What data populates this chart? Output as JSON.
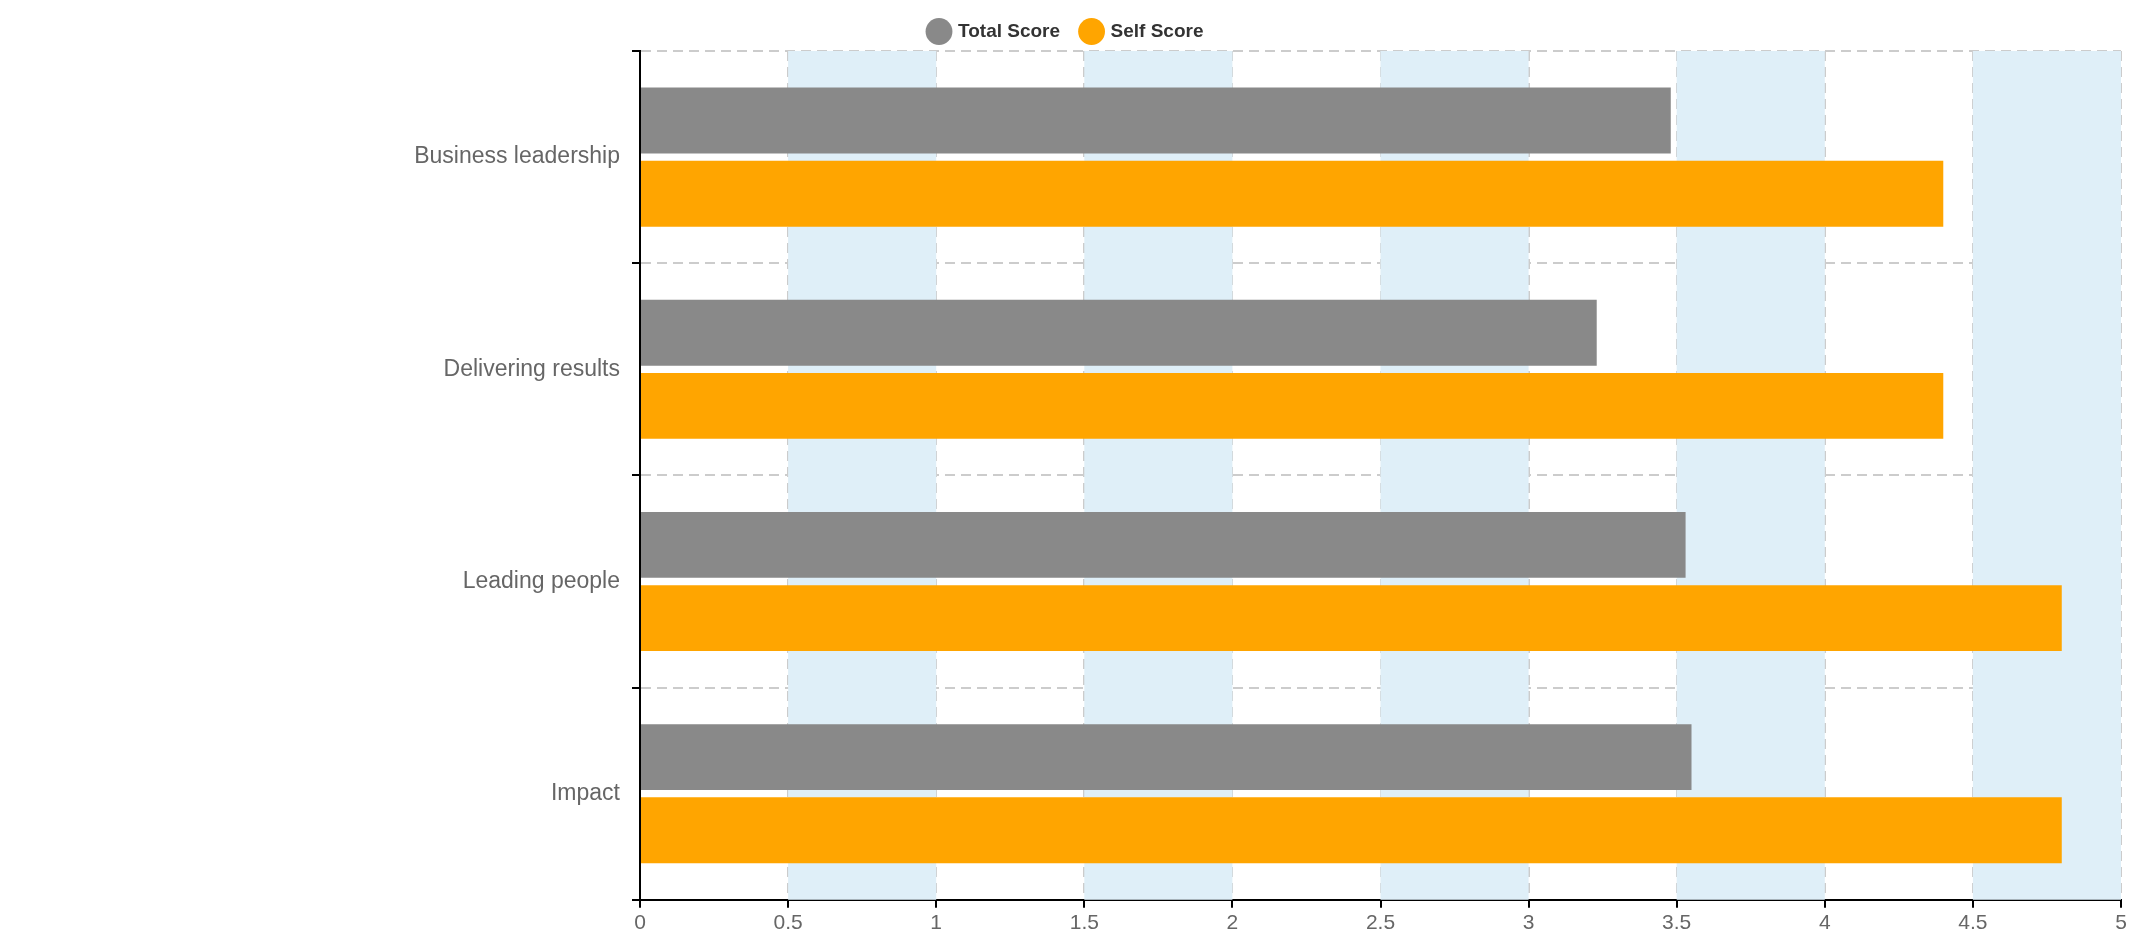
{
  "chart_data": {
    "type": "bar",
    "orientation": "horizontal",
    "categories": [
      "Business leadership",
      "Delivering results",
      "Leading people",
      "Impact"
    ],
    "series": [
      {
        "name": "Total Score",
        "color": "#898989",
        "values": [
          3.48,
          3.23,
          3.53,
          3.55
        ]
      },
      {
        "name": "Self Score",
        "color": "#ffa500",
        "values": [
          4.4,
          4.4,
          4.8,
          4.8
        ]
      }
    ],
    "xlim": [
      0,
      5
    ],
    "xticks": [
      0,
      0.5,
      1,
      1.5,
      2,
      2.5,
      3,
      3.5,
      4,
      4.5,
      5
    ],
    "bands": [
      {
        "axis": "x",
        "from": 0.5,
        "to": 1,
        "color": "#dfeff8"
      },
      {
        "axis": "x",
        "from": 1.5,
        "to": 2,
        "color": "#dfeff8"
      },
      {
        "axis": "x",
        "from": 2.5,
        "to": 3,
        "color": "#dfeff8"
      },
      {
        "axis": "x",
        "from": 3.5,
        "to": 4,
        "color": "#dfeff8"
      },
      {
        "axis": "x",
        "from": 4.5,
        "to": 5,
        "color": "#dfeff8"
      }
    ],
    "grid": true,
    "legend": "top"
  }
}
